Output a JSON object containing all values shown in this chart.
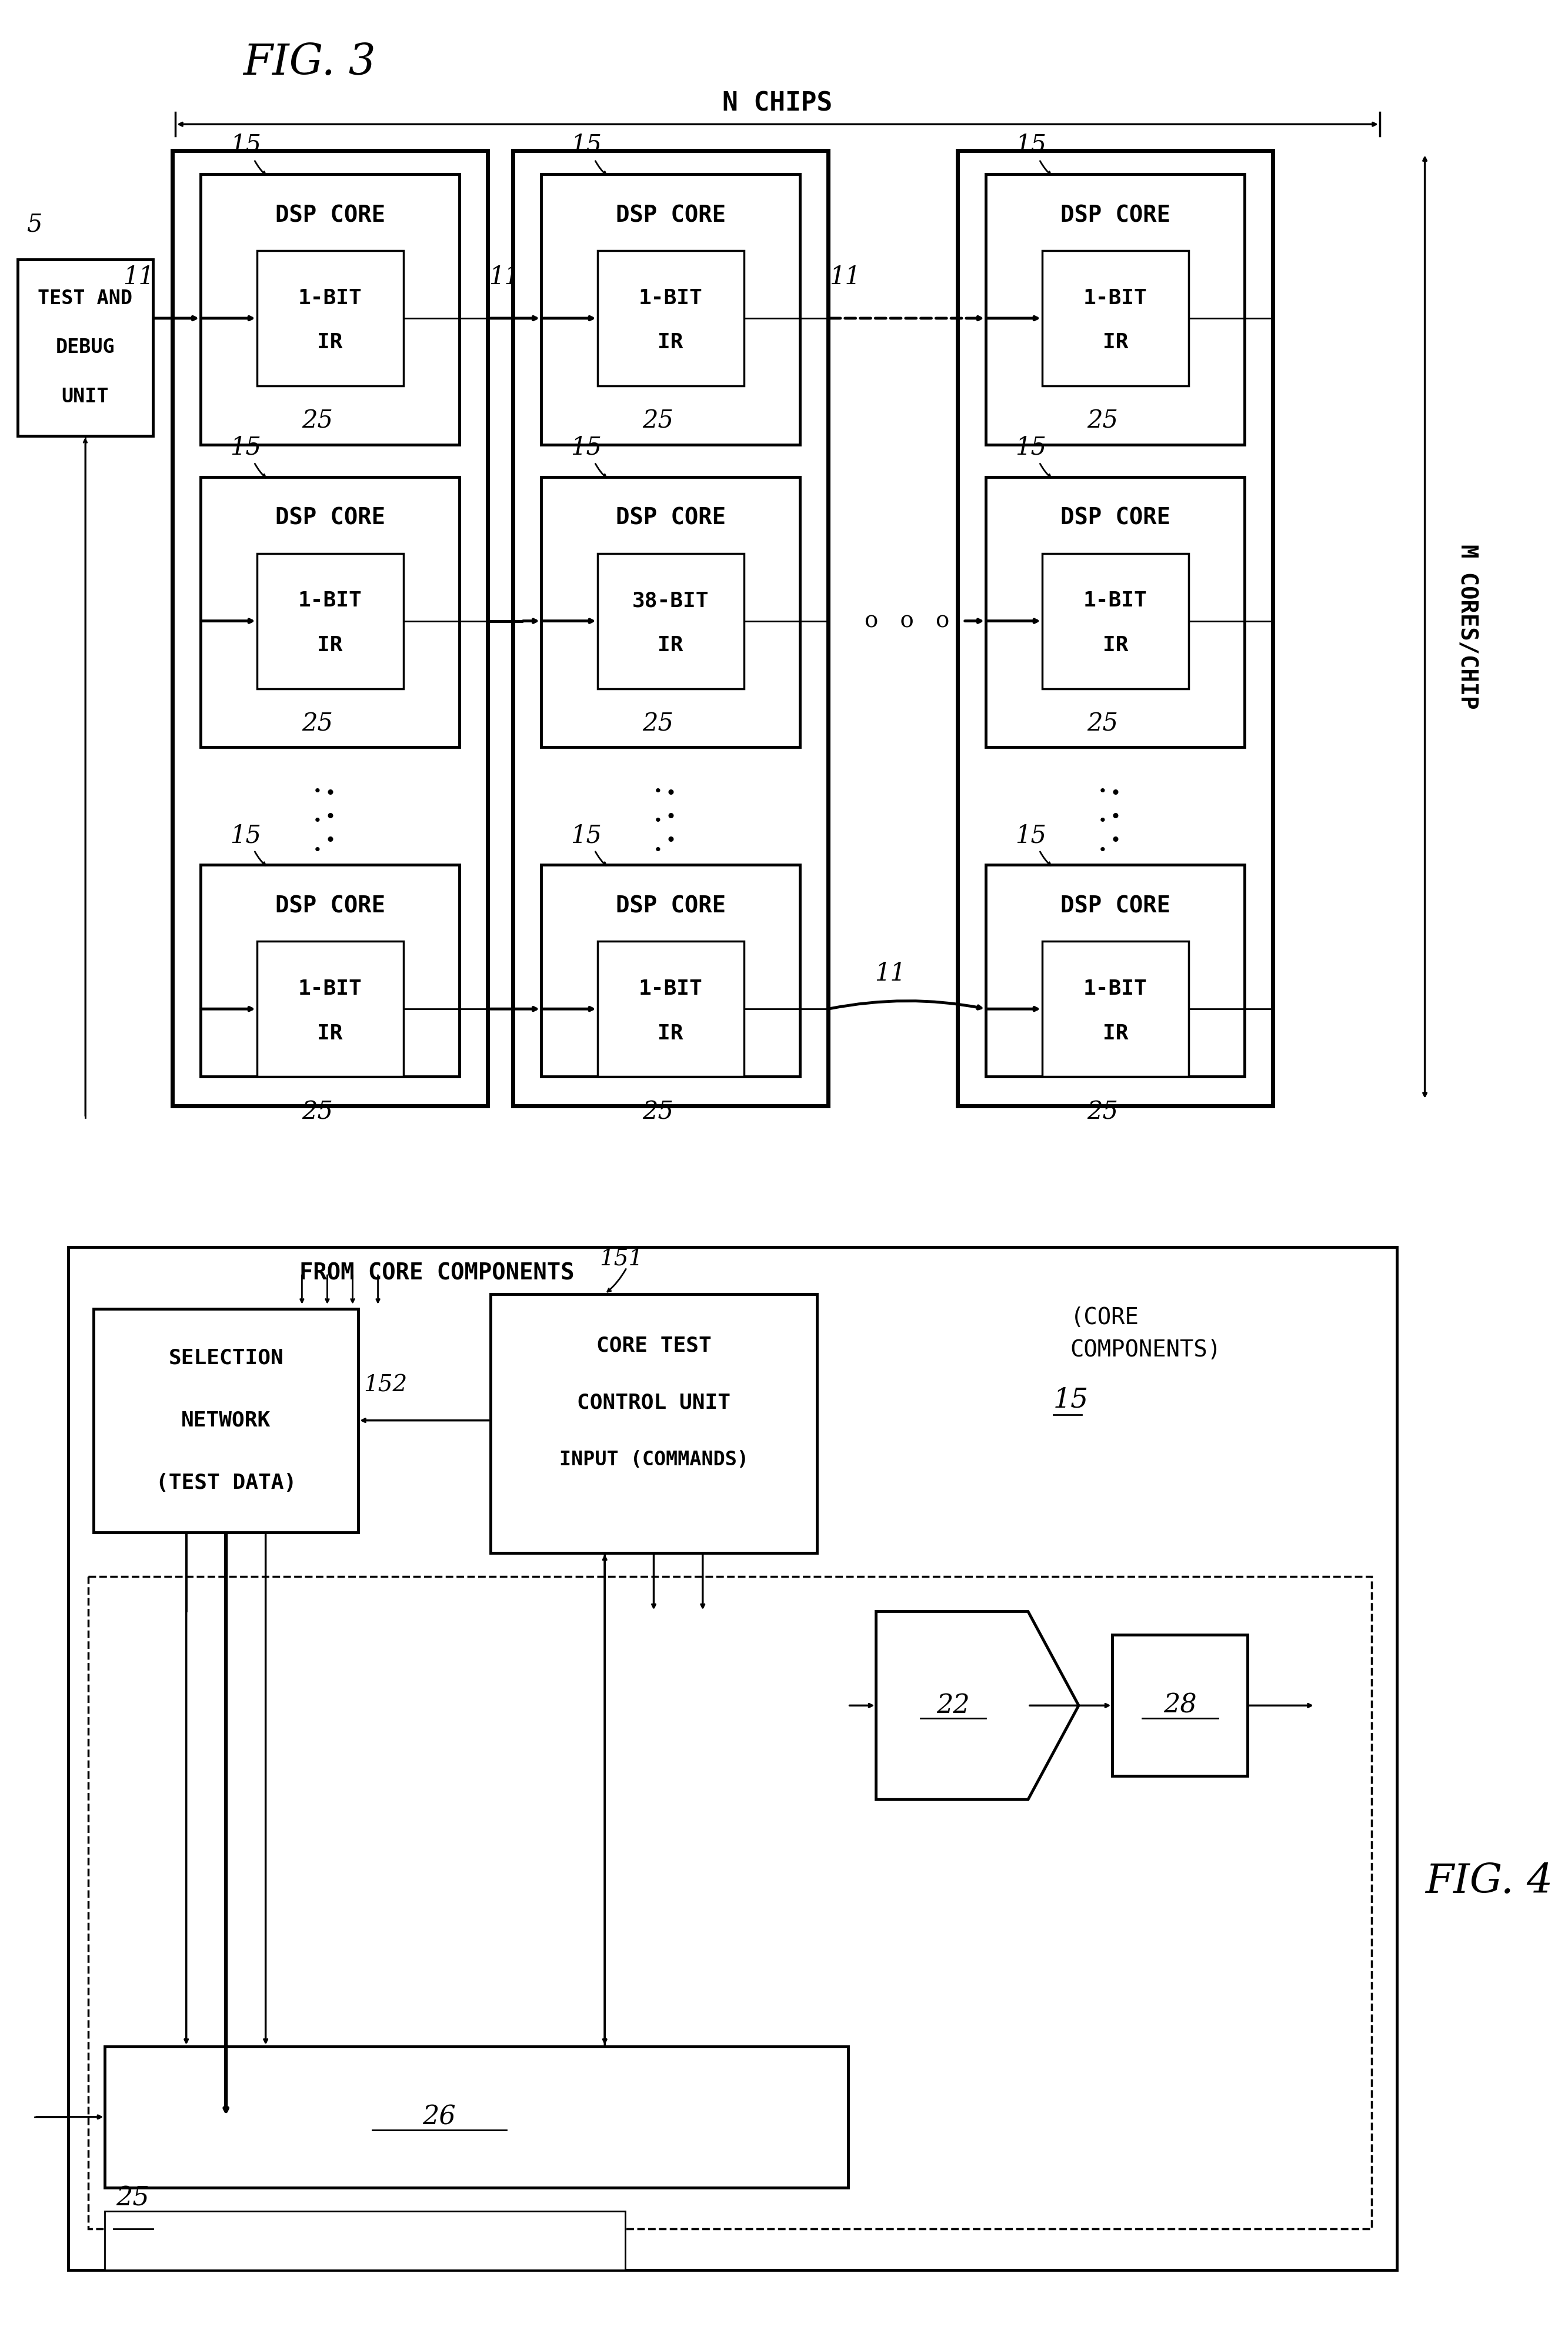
{
  "fig3_title": "FIG. 3",
  "fig4_title": "FIG. 4",
  "n_chips_label": "N CHIPS",
  "m_cores_label": "M CORES/CHIP",
  "bg_color": "#ffffff",
  "line_color": "#000000",
  "chip_ir_labels": [
    [
      "1-BIT",
      "1-BIT",
      "1-BIT"
    ],
    [
      "1-BIT",
      "38-BIT",
      "1-BIT"
    ],
    [
      "1-BIT",
      "1-BIT",
      "1-BIT"
    ]
  ]
}
